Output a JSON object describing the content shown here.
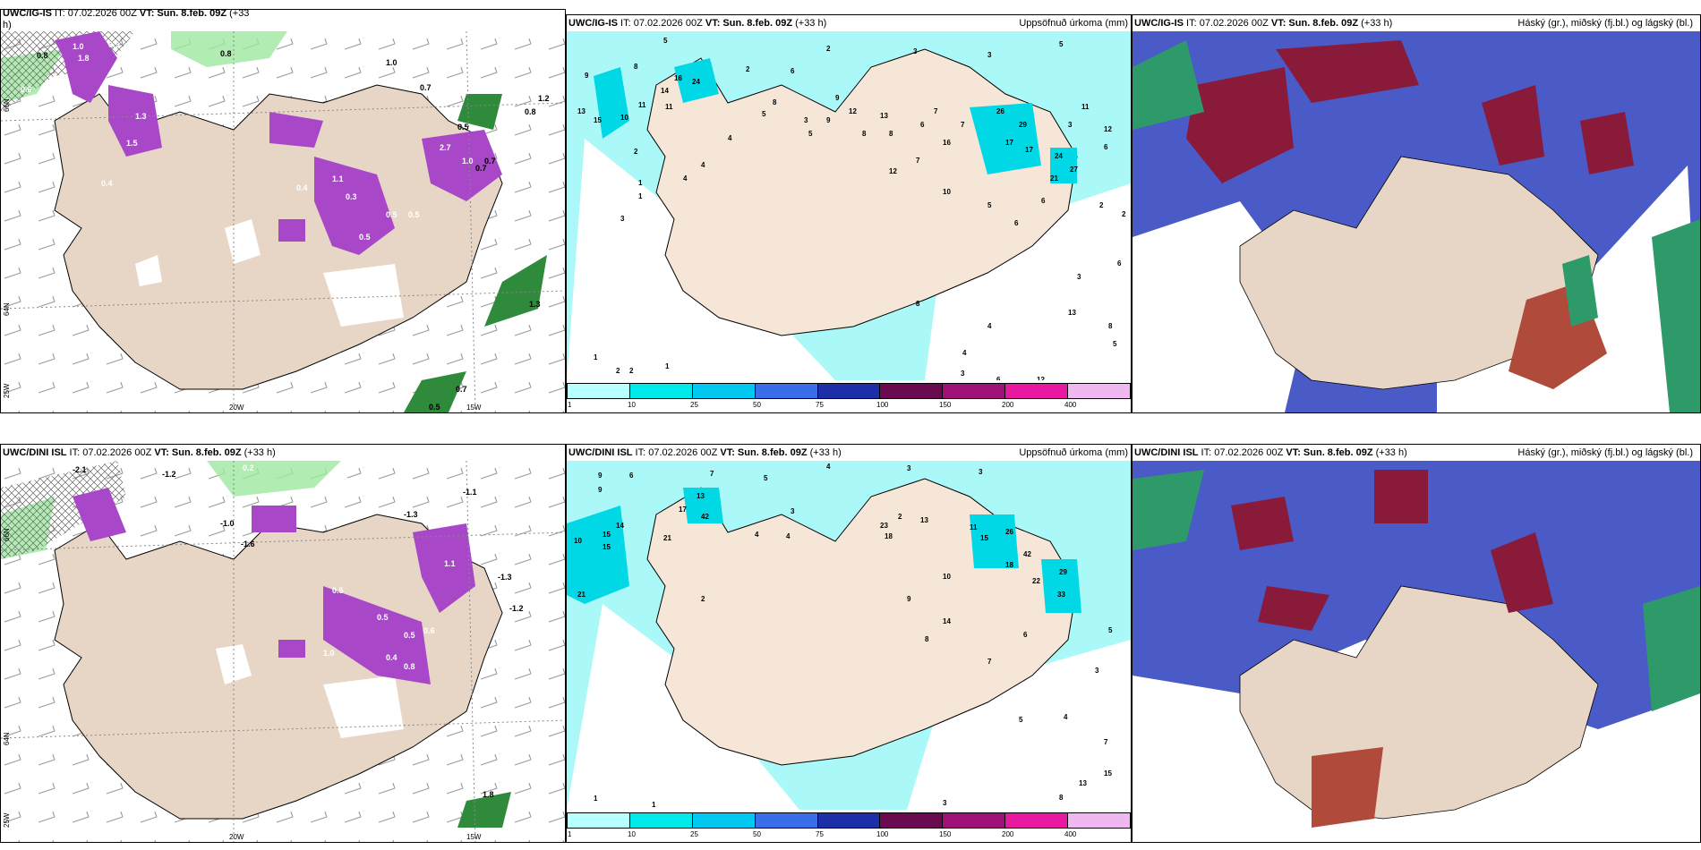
{
  "row1": {
    "wind": {
      "title_prefix": "UWC/IG-IS",
      "title_mid": " IT: 07.02.2026 00Z ",
      "title_vt": "VT: Sun. 8.feb. 09Z",
      "title_suffix": " (+33",
      "title_wrap": "h)",
      "labels": [
        "0.8",
        "1.0",
        "0.8",
        "0.6",
        "0.7",
        "0.5",
        "0.8",
        "1.2",
        "0.4",
        "1.5",
        "0.3",
        "0.5",
        "2.7",
        "1.0",
        "0.5",
        "0.7",
        "1.3",
        "0.4",
        "2.5",
        "0.7",
        "1.8",
        "0.7",
        "0.9",
        "1.1",
        "0.5",
        "1.0",
        "1.3",
        "0.5"
      ]
    },
    "precip": {
      "title_prefix": "UWC/IG-IS",
      "title_mid": " IT: 07.02.2026 00Z ",
      "title_vt": "VT: Sun. 8.feb. 09Z",
      "title_suffix": " (+33 h)",
      "right_label": "Uppsöfnuð úrkoma (mm)",
      "numbers": [
        "5",
        "2",
        "8",
        "2",
        "6",
        "3",
        "3",
        "5",
        "9",
        "13",
        "15",
        "16",
        "14",
        "24",
        "11",
        "10",
        "11",
        "12",
        "13",
        "9",
        "8",
        "8",
        "6",
        "7",
        "12",
        "16",
        "7",
        "5",
        "8",
        "3",
        "5",
        "9",
        "7",
        "4",
        "26",
        "29",
        "17",
        "17",
        "24",
        "27",
        "21",
        "11",
        "6",
        "2",
        "1",
        "5",
        "6",
        "10",
        "12",
        "6",
        "1",
        "4",
        "3",
        "2",
        "4",
        "1",
        "3",
        "2",
        "2",
        "6",
        "13",
        "8",
        "4",
        "5",
        "3",
        "6",
        "12",
        "8",
        "4",
        "3",
        "2",
        "1"
      ]
    },
    "clouds": {
      "title_prefix": "UWC/IG-IS",
      "title_mid": " IT: 07.02.2026 00Z ",
      "title_vt": "VT: Sun. 8.feb. 09Z",
      "title_suffix": " (+33 h)",
      "right_label": "Háský (gr.), miðský (fj.bl.) og lágský (bl.)"
    }
  },
  "row2": {
    "wind": {
      "title_prefix": "UWC/DINI ISL",
      "title_mid": " IT: 07.02.2026 00Z ",
      "title_vt": "VT: Sun. 8.feb. 09Z",
      "title_suffix": " (+33 h)",
      "labels": [
        "-2.1",
        "-1.2",
        "0.2",
        "0.1",
        "-1.0",
        "-1.6",
        "-1.3",
        "-1.1",
        "1.1",
        "0.5",
        "0.5",
        "0.5",
        "0.8",
        "0.4",
        "0.6",
        "-1.3",
        "-1.2",
        "1.0",
        "1.8"
      ]
    },
    "precip": {
      "title_prefix": "UWC/DINI ISL",
      "title_mid": " IT: 07.02.2026 00Z ",
      "title_vt": "VT: Sun. 8.feb. 09Z",
      "title_suffix": " (+33 h)",
      "right_label": "Uppsöfnuð úrkoma (mm)",
      "numbers": [
        "9",
        "6",
        "7",
        "5",
        "4",
        "3",
        "3",
        "9",
        "10",
        "15",
        "14",
        "15",
        "17",
        "42",
        "21",
        "21",
        "13",
        "3",
        "4",
        "2",
        "4",
        "2",
        "13",
        "23",
        "18",
        "11",
        "15",
        "26",
        "42",
        "29",
        "33",
        "22",
        "18",
        "10",
        "14",
        "7",
        "6",
        "8",
        "9",
        "3",
        "5",
        "4",
        "7",
        "15",
        "13",
        "8",
        "5",
        "1",
        "1",
        "3"
      ]
    },
    "clouds": {
      "title_prefix": "UWC/DINI ISL",
      "title_mid": " IT: 07.02.2026 00Z ",
      "title_vt": "VT: Sun. 8.feb. 09Z",
      "title_suffix": " (+33 h)",
      "right_label": "Háský (gr.), miðský (fj.bl.) og lágský (bl.)"
    }
  },
  "axes": {
    "lon_left": "20W",
    "lon_right": "15W",
    "lat_top": "66N",
    "lat_mid": "64N",
    "lon_edge": "25W"
  },
  "colorbar": {
    "labels": [
      "1",
      "10",
      "25",
      "50",
      "75",
      "100",
      "150",
      "200",
      "400"
    ],
    "colors": [
      "#b8ffff",
      "#00eaea",
      "#00c8f0",
      "#3a6ee8",
      "#1c2ea8",
      "#6a0a50",
      "#a0107a",
      "#e818a0",
      "#f0b8f0"
    ]
  },
  "colors": {
    "land": "#e7d6c6",
    "sea_precip": "#aaf8f8",
    "high_cloud": "#4a5bc8",
    "mid_cloud": "#8a1a3a",
    "low_cloud": "#2e9a6a",
    "purple": "#a848c8",
    "green": "#2a8a3a"
  }
}
